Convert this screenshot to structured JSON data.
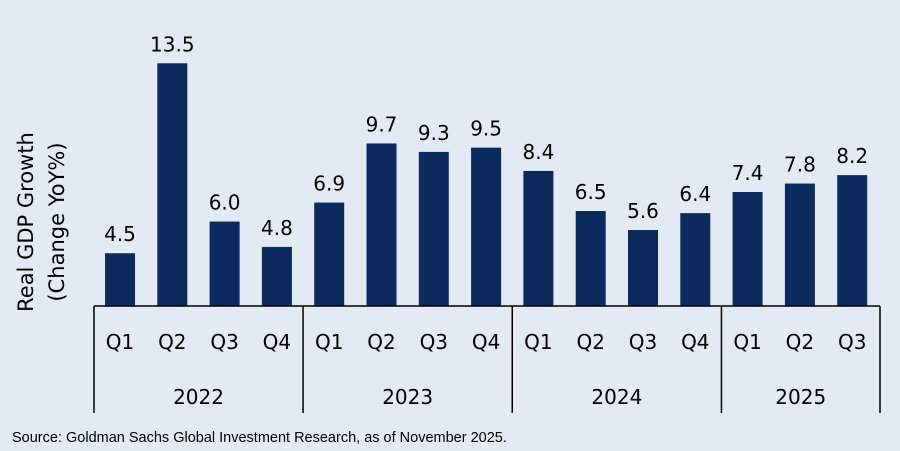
{
  "chart_data": {
    "type": "bar",
    "ylabel_line1": "Real GDP Growth",
    "ylabel_line2": "(Change YoY%)",
    "ylim": [
      2,
      14
    ],
    "grid": false,
    "bar_color": "#0b2a5e",
    "background": "#e4eaf4",
    "groups": [
      {
        "year": "2022",
        "quarters": [
          "Q1",
          "Q2",
          "Q3",
          "Q4"
        ],
        "values": [
          4.5,
          13.5,
          6.0,
          4.8
        ]
      },
      {
        "year": "2023",
        "quarters": [
          "Q1",
          "Q2",
          "Q3",
          "Q4"
        ],
        "values": [
          6.9,
          9.7,
          9.3,
          9.5
        ]
      },
      {
        "year": "2024",
        "quarters": [
          "Q1",
          "Q2",
          "Q3",
          "Q4"
        ],
        "values": [
          8.4,
          6.5,
          5.6,
          6.4
        ]
      },
      {
        "year": "2025",
        "quarters": [
          "Q1",
          "Q2",
          "Q3"
        ],
        "values": [
          7.4,
          7.8,
          8.2
        ]
      }
    ]
  },
  "source": "Source: Goldman Sachs Global Investment Research, as of November 2025."
}
